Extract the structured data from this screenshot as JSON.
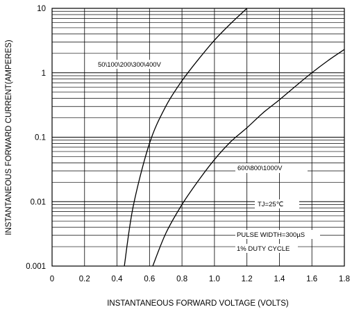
{
  "chart_data": {
    "type": "line",
    "xlabel": "INSTANTANEOUS FORWARD VOLTAGE (VOLTS)",
    "ylabel": "INSTANTANEOUS FORWARD CURRENT(AMPERES)",
    "xlim": [
      0,
      1.8
    ],
    "ylim": [
      0.001,
      10
    ],
    "yscale": "log",
    "grid": true,
    "x_ticks": [
      "0",
      "0.2",
      "0.4",
      "0.6",
      "0.8",
      "1.0",
      "1.2",
      "1.4",
      "1.6",
      "1.8"
    ],
    "y_ticks": [
      "0.001",
      "0.01",
      "0.1",
      "1",
      "10"
    ],
    "series": [
      {
        "name": "50\\100\\200\\300\\400V",
        "x": [
          0.445,
          0.5,
          0.6,
          0.7,
          0.8,
          0.9,
          1.0,
          1.1,
          1.2
        ],
        "y": [
          0.001,
          0.0085,
          0.08,
          0.3,
          0.75,
          1.6,
          3.2,
          5.8,
          10
        ]
      },
      {
        "name": "600\\800\\1000V",
        "x": [
          0.62,
          0.7,
          0.8,
          0.9,
          1.0,
          1.1,
          1.2,
          1.3,
          1.4,
          1.5,
          1.6,
          1.7,
          1.8
        ],
        "y": [
          0.001,
          0.0032,
          0.009,
          0.021,
          0.045,
          0.085,
          0.14,
          0.24,
          0.38,
          0.62,
          1.0,
          1.55,
          2.3
        ]
      }
    ],
    "annotations": [
      "TJ=25℃",
      "PULSE WIDTH=300µS",
      "1% DUTY CYCLE"
    ]
  }
}
